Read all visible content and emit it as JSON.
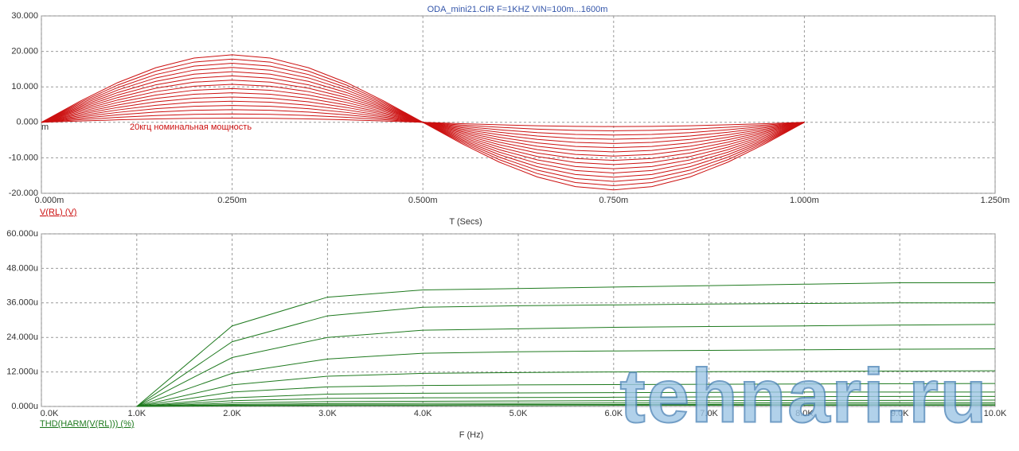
{
  "watermark": "tehnari.ru",
  "chart_data": [
    {
      "type": "line",
      "title": "ODA_mini21.CIR F=1KHZ VIN=100m...1600m",
      "x_label": "T (Secs)",
      "y_label": "V(RL) (V)",
      "color": "#cc1111",
      "grid": true,
      "annotations": [
        "m",
        "20кгц номинальная мощность"
      ],
      "xlim": [
        0,
        0.00125
      ],
      "xticks": [
        {
          "value": 0,
          "label": "0.000m"
        },
        {
          "value": 0.00025,
          "label": "0.250m"
        },
        {
          "value": 0.0005,
          "label": "0.500m"
        },
        {
          "value": 0.00075,
          "label": "0.750m"
        },
        {
          "value": 0.001,
          "label": "1.000m"
        },
        {
          "value": 0.00125,
          "label": "1.250m"
        }
      ],
      "ylim": [
        -20,
        30
      ],
      "yticks": [
        {
          "value": -20,
          "label": "-20.000"
        },
        {
          "value": -10,
          "label": "-10.000"
        },
        {
          "value": 0,
          "label": "0.000"
        },
        {
          "value": 10,
          "label": "10.000"
        },
        {
          "value": 20,
          "label": "20.000"
        },
        {
          "value": 30,
          "label": "30.000"
        }
      ],
      "x": [
        0,
        5e-05,
        0.0001,
        0.00015,
        0.0002,
        0.00025,
        0.0003,
        0.00035,
        0.0004,
        0.00045,
        0.0005,
        0.00055,
        0.0006,
        0.00065,
        0.0007,
        0.00075,
        0.0008,
        0.00085,
        0.0009,
        0.00095,
        0.001
      ],
      "series": [
        {
          "values": [
            0,
            0.37,
            0.7,
            0.96,
            1.13,
            1.19,
            1.13,
            0.96,
            0.7,
            0.37,
            0,
            -0.37,
            -0.7,
            -0.96,
            -1.13,
            -1.19,
            -1.13,
            -0.96,
            -0.7,
            -0.37,
            0
          ]
        },
        {
          "values": [
            0,
            0.74,
            1.4,
            1.93,
            2.26,
            2.38,
            2.26,
            1.93,
            1.4,
            0.74,
            0,
            -0.74,
            -1.4,
            -1.93,
            -2.26,
            -2.38,
            -2.26,
            -1.93,
            -1.4,
            -0.74,
            0
          ]
        },
        {
          "values": [
            0,
            1.1,
            2.1,
            2.89,
            3.4,
            3.57,
            3.4,
            2.89,
            2.1,
            1.1,
            0,
            -1.1,
            -2.1,
            -2.89,
            -3.4,
            -3.57,
            -3.4,
            -2.89,
            -2.1,
            -1.1,
            0
          ]
        },
        {
          "values": [
            0,
            1.47,
            2.8,
            3.85,
            4.53,
            4.76,
            4.53,
            3.85,
            2.8,
            1.47,
            0,
            -1.47,
            -2.8,
            -3.85,
            -4.53,
            -4.76,
            -4.53,
            -3.85,
            -2.8,
            -1.47,
            0
          ]
        },
        {
          "values": [
            0,
            1.84,
            3.5,
            4.81,
            5.66,
            5.95,
            5.66,
            4.81,
            3.5,
            1.84,
            0,
            -1.84,
            -3.5,
            -4.81,
            -5.66,
            -5.95,
            -5.66,
            -4.81,
            -3.5,
            -1.84,
            0
          ]
        },
        {
          "values": [
            0,
            2.21,
            4.2,
            5.78,
            6.79,
            7.14,
            6.79,
            5.78,
            4.2,
            2.21,
            0,
            -2.21,
            -4.2,
            -5.78,
            -6.79,
            -7.14,
            -6.79,
            -5.78,
            -4.2,
            -2.21,
            0
          ]
        },
        {
          "values": [
            0,
            2.57,
            4.9,
            6.74,
            7.92,
            8.33,
            7.92,
            6.74,
            4.9,
            2.57,
            0,
            -2.57,
            -4.9,
            -6.74,
            -7.92,
            -8.33,
            -7.92,
            -6.74,
            -4.9,
            -2.57,
            0
          ]
        },
        {
          "values": [
            0,
            2.94,
            5.6,
            7.7,
            9.05,
            9.52,
            9.05,
            7.7,
            5.6,
            2.94,
            0,
            -2.94,
            -5.6,
            -7.7,
            -9.05,
            -9.52,
            -9.05,
            -7.7,
            -5.6,
            -2.94,
            0
          ]
        },
        {
          "values": [
            0,
            3.31,
            6.3,
            8.66,
            10.19,
            10.71,
            10.19,
            8.66,
            6.3,
            3.31,
            0,
            -3.31,
            -6.3,
            -8.66,
            -10.19,
            -10.71,
            -10.19,
            -8.66,
            -6.3,
            -3.31,
            0
          ]
        },
        {
          "values": [
            0,
            3.68,
            7.0,
            9.63,
            11.32,
            11.9,
            11.32,
            9.63,
            7.0,
            3.68,
            0,
            -3.68,
            -7.0,
            -9.63,
            -11.32,
            -11.9,
            -11.32,
            -9.63,
            -7.0,
            -3.68,
            0
          ]
        },
        {
          "values": [
            0,
            4.04,
            7.7,
            10.59,
            12.45,
            13.09,
            12.45,
            10.59,
            7.7,
            4.04,
            0,
            -4.04,
            -7.7,
            -10.59,
            -12.45,
            -13.09,
            -12.45,
            -10.59,
            -7.7,
            -4.04,
            0
          ]
        },
        {
          "values": [
            0,
            4.41,
            8.4,
            11.55,
            13.58,
            14.28,
            13.58,
            11.55,
            8.4,
            4.41,
            0,
            -4.41,
            -8.4,
            -11.55,
            -13.58,
            -14.28,
            -13.58,
            -11.55,
            -8.4,
            -4.41,
            0
          ]
        },
        {
          "values": [
            0,
            4.78,
            9.1,
            12.52,
            14.71,
            15.47,
            14.71,
            12.52,
            9.1,
            4.78,
            0,
            -4.78,
            -9.1,
            -12.52,
            -14.71,
            -15.47,
            -14.71,
            -12.52,
            -9.1,
            -4.78,
            0
          ]
        },
        {
          "values": [
            0,
            5.15,
            9.8,
            13.48,
            15.84,
            16.66,
            15.84,
            13.48,
            9.8,
            5.15,
            0,
            -5.15,
            -9.8,
            -13.48,
            -15.84,
            -16.66,
            -15.84,
            -13.48,
            -9.8,
            -5.15,
            0
          ]
        },
        {
          "values": [
            0,
            5.52,
            10.5,
            14.44,
            16.98,
            17.85,
            16.98,
            14.44,
            10.5,
            5.52,
            0,
            -5.52,
            -10.5,
            -14.44,
            -16.98,
            -17.85,
            -16.98,
            -14.44,
            -10.5,
            -5.52,
            0
          ]
        },
        {
          "values": [
            0,
            5.88,
            11.2,
            15.4,
            18.11,
            19.04,
            18.11,
            15.4,
            11.2,
            5.88,
            0,
            -5.88,
            -11.2,
            -15.4,
            -18.11,
            -19.04,
            -18.11,
            -15.4,
            -11.2,
            -5.88,
            0
          ]
        }
      ]
    },
    {
      "type": "line",
      "x_label": "F (Hz)",
      "y_label": "THD(HARM(V(RL))) (%)",
      "color": "#1f7a1f",
      "grid": true,
      "xlim": [
        0,
        10000
      ],
      "xticks": [
        {
          "value": 0,
          "label": "0.0K"
        },
        {
          "value": 1000,
          "label": "1.0K"
        },
        {
          "value": 2000,
          "label": "2.0K"
        },
        {
          "value": 3000,
          "label": "3.0K"
        },
        {
          "value": 4000,
          "label": "4.0K"
        },
        {
          "value": 5000,
          "label": "5.0K"
        },
        {
          "value": 6000,
          "label": "6.0K"
        },
        {
          "value": 7000,
          "label": "7.0K"
        },
        {
          "value": 8000,
          "label": "8.0K"
        },
        {
          "value": 9000,
          "label": "9.0K"
        },
        {
          "value": 10000,
          "label": "10.0K"
        }
      ],
      "ylim": [
        0,
        6e-05
      ],
      "yticks": [
        {
          "value": 0,
          "label": "0.000u"
        },
        {
          "value": 1.2e-05,
          "label": "12.000u"
        },
        {
          "value": 2.4e-05,
          "label": "24.000u"
        },
        {
          "value": 3.6e-05,
          "label": "36.000u"
        },
        {
          "value": 4.8e-05,
          "label": "48.000u"
        },
        {
          "value": 6e-05,
          "label": "60.000u"
        }
      ],
      "x": [
        1000,
        2000,
        3000,
        4000,
        5000,
        6000,
        7000,
        8000,
        9000,
        10000
      ],
      "series": [
        {
          "values": [
            0,
            2.8e-05,
            3.8e-05,
            4.05e-05,
            4.1e-05,
            4.15e-05,
            4.2e-05,
            4.25e-05,
            4.3e-05,
            4.3e-05
          ]
        },
        {
          "values": [
            0,
            2.25e-05,
            3.15e-05,
            3.45e-05,
            3.5e-05,
            3.53e-05,
            3.56e-05,
            3.58e-05,
            3.6e-05,
            3.6e-05
          ]
        },
        {
          "values": [
            0,
            1.7e-05,
            2.4e-05,
            2.65e-05,
            2.7e-05,
            2.75e-05,
            2.78e-05,
            2.8e-05,
            2.83e-05,
            2.85e-05
          ]
        },
        {
          "values": [
            0,
            1.15e-05,
            1.65e-05,
            1.85e-05,
            1.9e-05,
            1.93e-05,
            1.95e-05,
            1.97e-05,
            1.99e-05,
            2e-05
          ]
        },
        {
          "values": [
            0,
            7.5e-06,
            1.05e-05,
            1.15e-05,
            1.18e-05,
            1.2e-05,
            1.21e-05,
            1.22e-05,
            1.23e-05,
            1.24e-05
          ]
        },
        {
          "values": [
            0,
            5e-06,
            6.8e-06,
            7.3e-06,
            7.5e-06,
            7.6e-06,
            7.7e-06,
            7.8e-06,
            7.9e-06,
            8e-06
          ]
        },
        {
          "values": [
            0,
            3e-06,
            4.3e-06,
            4.6e-06,
            4.7e-06,
            4.8e-06,
            4.9e-06,
            5e-06,
            5e-06,
            5e-06
          ]
        },
        {
          "values": [
            0,
            2e-06,
            2.8e-06,
            3e-06,
            3.1e-06,
            3.2e-06,
            3.3e-06,
            3.4e-06,
            3.5e-06,
            3.5e-06
          ]
        },
        {
          "values": [
            0,
            1.2e-06,
            1.7e-06,
            1.8e-06,
            1.9e-06,
            2e-06,
            2e-06,
            2.1e-06,
            2.1e-06,
            2.2e-06
          ]
        },
        {
          "values": [
            0,
            7e-07,
            1e-06,
            1.1e-06,
            1.1e-06,
            1.2e-06,
            1.2e-06,
            1.3e-06,
            1.3e-06,
            1.3e-06
          ]
        },
        {
          "values": [
            0,
            4e-07,
            6e-07,
            6e-07,
            7e-07,
            7e-07,
            7e-07,
            8e-07,
            8e-07,
            8e-07
          ]
        },
        {
          "values": [
            0,
            2e-07,
            3e-07,
            3e-07,
            3e-07,
            4e-07,
            4e-07,
            4e-07,
            4e-07,
            4e-07
          ]
        }
      ]
    }
  ]
}
